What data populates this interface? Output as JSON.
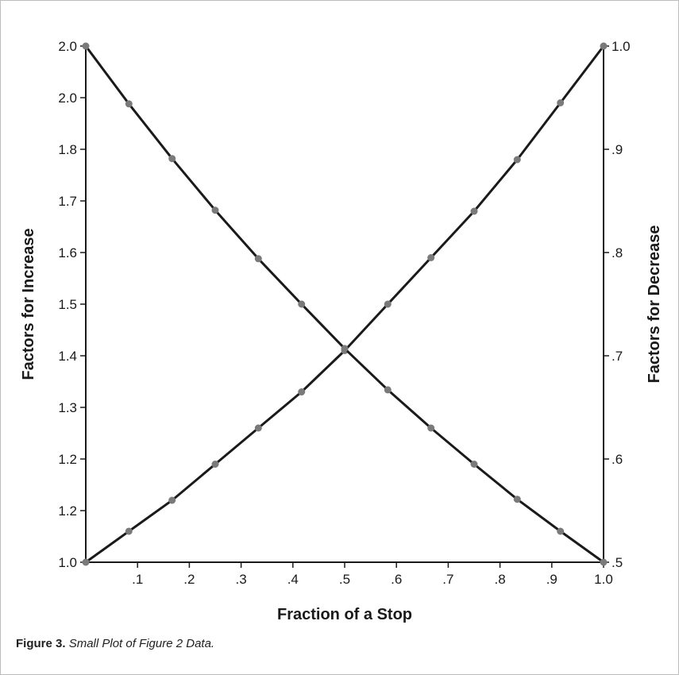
{
  "chart_data": {
    "type": "line",
    "xlabel": "Fraction of a Stop",
    "ylabel_left": "Factors for Increase",
    "ylabel_right": "Factors for Decrease",
    "x_tick_labels": [
      ".1",
      ".2",
      ".3",
      ".4",
      ".5",
      ".6",
      ".7",
      ".8",
      ".9",
      "1.0"
    ],
    "y_left_tick_labels": [
      "2.0",
      "2.0",
      "1.8",
      "1.7",
      "1.6",
      "1.5",
      "1.4",
      "1.3",
      "1.2",
      "1.2",
      "1.0"
    ],
    "y_right_tick_labels": [
      "1.0",
      ".9",
      ".8",
      ".7",
      ".6",
      ".5"
    ],
    "xlim": [
      0,
      1
    ],
    "ylim_left": [
      1.0,
      2.0
    ],
    "ylim_right": [
      0.5,
      1.0
    ],
    "grid": false,
    "series": [
      {
        "axis": "left",
        "x": [
          0,
          0.0833,
          0.1667,
          0.25,
          0.3333,
          0.4167,
          0.5,
          0.5833,
          0.6667,
          0.75,
          0.8333,
          0.9167,
          1.0
        ],
        "values": [
          1.0,
          1.06,
          1.12,
          1.19,
          1.26,
          1.33,
          1.41,
          1.5,
          1.59,
          1.68,
          1.78,
          1.89,
          2.0
        ]
      },
      {
        "axis": "right",
        "x": [
          0,
          0.0833,
          0.1667,
          0.25,
          0.3333,
          0.4167,
          0.5,
          0.5833,
          0.6667,
          0.75,
          0.8333,
          0.9167,
          1.0
        ],
        "values": [
          1.0,
          0.944,
          0.891,
          0.841,
          0.794,
          0.75,
          0.707,
          0.667,
          0.63,
          0.595,
          0.561,
          0.53,
          0.5
        ]
      }
    ]
  },
  "caption": {
    "label": "Figure 3.",
    "text": "Small Plot of Figure 2 Data."
  }
}
